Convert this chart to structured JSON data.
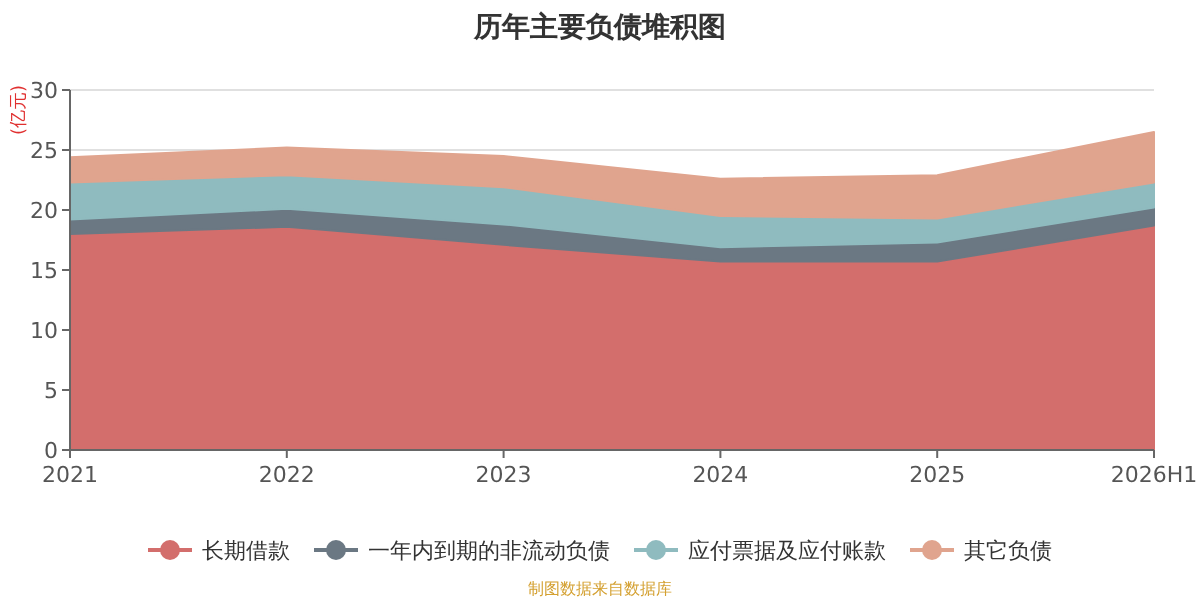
{
  "chart_data": {
    "type": "area",
    "title": "历年主要负债堆积图",
    "ylabel": "(亿元)",
    "stacked": true,
    "categories": [
      "2021",
      "2022",
      "2023",
      "2024",
      "2025",
      "2026H1"
    ],
    "series": [
      {
        "name": "长期借款",
        "color": "#d36e6c",
        "values": [
          18.0,
          18.6,
          17.1,
          15.7,
          15.7,
          18.7
        ]
      },
      {
        "name": "一年内到期的非流动负债",
        "color": "#6b7883",
        "values": [
          1.2,
          1.5,
          1.7,
          1.2,
          1.6,
          1.5
        ]
      },
      {
        "name": "应付票据及应付账款",
        "color": "#8fbbbf",
        "values": [
          3.1,
          2.8,
          3.1,
          2.6,
          2.0,
          2.1
        ]
      },
      {
        "name": "其它负债",
        "color": "#e0a48e",
        "values": [
          2.1,
          2.3,
          2.6,
          3.1,
          3.6,
          4.2
        ]
      }
    ],
    "ylim": [
      0,
      30
    ],
    "yticks": [
      0,
      5,
      10,
      15,
      20,
      25,
      30
    ],
    "grid": "y",
    "legend": "bottom",
    "annotations": [
      "制图数据来自数据库"
    ]
  }
}
